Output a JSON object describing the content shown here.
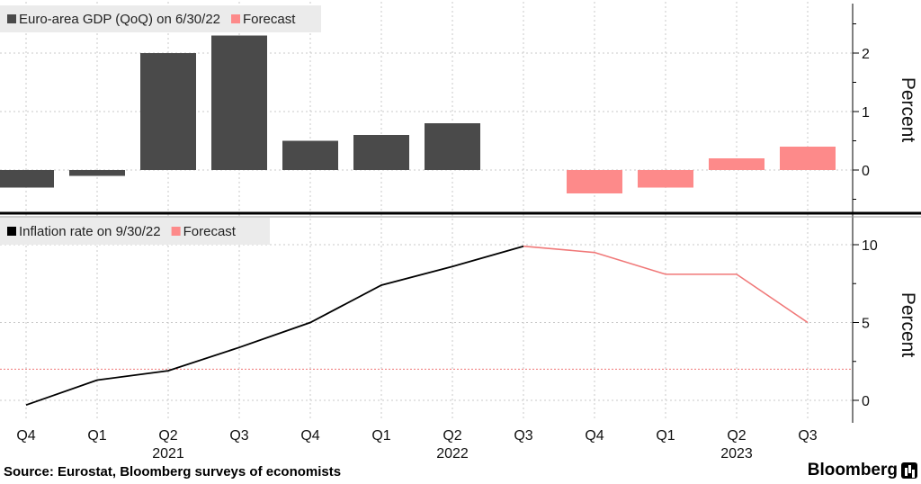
{
  "chart_data": [
    {
      "type": "bar",
      "legend": [
        {
          "label": "Euro-area GDP (QoQ) on 6/30/22",
          "color": "#4a4a4a"
        },
        {
          "label": "Forecast",
          "color": "#fd8a8a"
        }
      ],
      "categories": [
        "Q4",
        "Q1",
        "Q2",
        "Q3",
        "Q4",
        "Q1",
        "Q2",
        "Q3",
        "Q4",
        "Q1",
        "Q2",
        "Q3"
      ],
      "series": [
        {
          "name": "Euro-area GDP (QoQ) on 6/30/22",
          "color": "#4a4a4a",
          "values": [
            -0.3,
            -0.1,
            2.0,
            2.3,
            0.5,
            0.6,
            0.8,
            null,
            null,
            null,
            null,
            null
          ]
        },
        {
          "name": "Forecast",
          "color": "#fd8a8a",
          "values": [
            null,
            null,
            null,
            null,
            null,
            null,
            null,
            null,
            -0.4,
            -0.3,
            0.2,
            0.4
          ]
        }
      ],
      "ylabel": "Percent",
      "yticks": [
        0,
        1,
        2
      ],
      "ylim": [
        -0.6,
        2.8
      ],
      "grid": true
    },
    {
      "type": "line",
      "legend": [
        {
          "label": "Inflation rate on 9/30/22",
          "color": "#000000"
        },
        {
          "label": "Forecast",
          "color": "#fd8a8a"
        }
      ],
      "categories": [
        "Q4",
        "Q1",
        "Q2",
        "Q3",
        "Q4",
        "Q1",
        "Q2",
        "Q3",
        "Q4",
        "Q1",
        "Q2",
        "Q3"
      ],
      "years": [
        {
          "label": "2021",
          "under_index": 2
        },
        {
          "label": "2022",
          "under_index": 6
        },
        {
          "label": "2023",
          "under_index": 10
        }
      ],
      "series": [
        {
          "name": "Inflation rate on 9/30/22",
          "color": "#000000",
          "values": [
            -0.3,
            1.3,
            1.9,
            3.4,
            5.0,
            7.4,
            8.6,
            9.9,
            null,
            null,
            null,
            null
          ]
        },
        {
          "name": "Forecast",
          "color": "#f07878",
          "values": [
            null,
            null,
            null,
            null,
            null,
            null,
            null,
            9.9,
            9.5,
            8.1,
            8.1,
            5.0
          ]
        }
      ],
      "reference_line": {
        "value": 2.0,
        "color": "#f07878"
      },
      "ylabel": "Percent",
      "yticks": [
        0,
        5,
        10
      ],
      "ylim": [
        -1.0,
        12.0
      ],
      "grid": true
    }
  ],
  "footer": {
    "source": "Source: Eurostat, Bloomberg surveys of economists",
    "brand": "Bloomberg"
  }
}
